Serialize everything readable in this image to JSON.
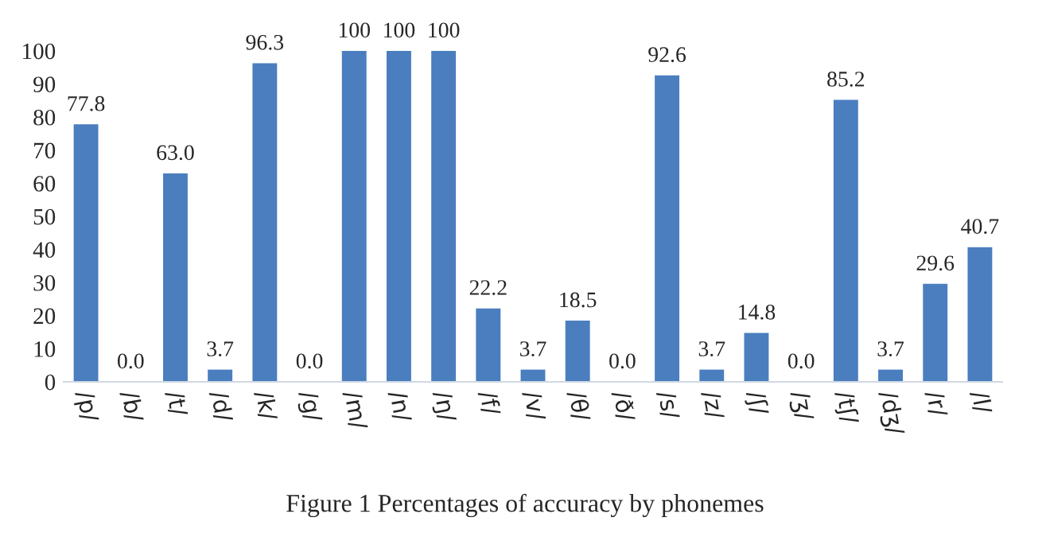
{
  "chart_data": {
    "type": "bar",
    "title": "Figure 1 Percentages of accuracy by phonemes",
    "categories": [
      "/p/",
      "/b/",
      "/t/",
      "/d/",
      "/k/",
      "/g/",
      "/m/",
      "/n/",
      "/ŋ/",
      "/f/",
      "/v/",
      "/θ/",
      "/ð/",
      "/s/",
      "/z/",
      "/ʃ/",
      "/ʒ/",
      "/tʃ/",
      "/dʒ/",
      "/r/",
      "/l/"
    ],
    "values": [
      77.8,
      0,
      63.0,
      3.7,
      96.3,
      0,
      100,
      100,
      100,
      22.2,
      3.7,
      18.5,
      0,
      92.6,
      3.7,
      14.8,
      0,
      85.2,
      3.7,
      29.6,
      40.7
    ],
    "value_labels": [
      "77.8",
      "0.0",
      "63.0",
      "3.7",
      "96.3",
      "0.0",
      "100",
      "100",
      "100",
      "22.2",
      "3.7",
      "18.5",
      "0.0",
      "92.6",
      "3.7",
      "14.8",
      "0.0",
      "85.2",
      "3.7",
      "29.6",
      "40.7"
    ],
    "color": "#4a7ebf",
    "ylim": [
      0,
      100
    ],
    "yticks": [
      0,
      10,
      20,
      30,
      40,
      50,
      60,
      70,
      80,
      90,
      100
    ],
    "grid": false,
    "legend": false
  }
}
